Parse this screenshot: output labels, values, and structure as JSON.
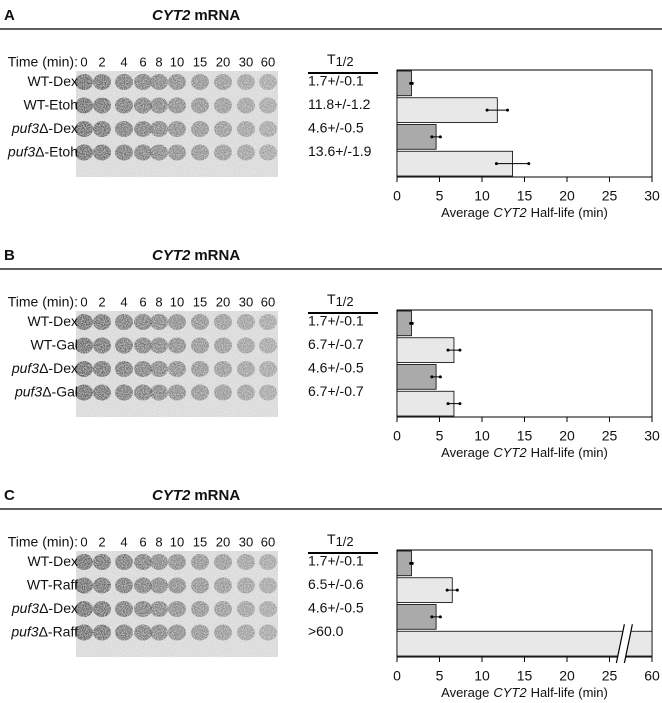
{
  "panels": [
    {
      "letter": "A",
      "title": {
        "gene": "CYT2",
        "rest": "mRNA"
      },
      "time_label": "Time (min):",
      "times": [
        0,
        2,
        4,
        6,
        8,
        10,
        15,
        20,
        30,
        60
      ],
      "half_life_header": {
        "main": "T",
        "sub": "1/2"
      },
      "rows": [
        {
          "label": "WT-Dex"
        },
        {
          "label": "WT-Etoh"
        },
        {
          "gene": "puf3",
          "label": "Δ-Dex"
        },
        {
          "gene": "puf3",
          "label": "Δ-Etoh"
        }
      ],
      "half_lives": [
        "1.7+/-0.1",
        "11.8+/-1.2",
        "4.6+/-0.5",
        "13.6+/-1.9"
      ]
    },
    {
      "letter": "B",
      "title": {
        "gene": "CYT2",
        "rest": "mRNA"
      },
      "time_label": "Time (min):",
      "times": [
        0,
        2,
        4,
        6,
        8,
        10,
        15,
        20,
        30,
        60
      ],
      "half_life_header": {
        "main": "T",
        "sub": "1/2"
      },
      "rows": [
        {
          "label": "WT-Dex"
        },
        {
          "label": "WT-Gal"
        },
        {
          "gene": "puf3",
          "label": "Δ-Dex"
        },
        {
          "gene": "puf3",
          "label": "Δ-Gal"
        }
      ],
      "half_lives": [
        "1.7+/-0.1",
        "6.7+/-0.7",
        "4.6+/-0.5",
        "6.7+/-0.7"
      ]
    },
    {
      "letter": "C",
      "title": {
        "gene": "CYT2",
        "rest": "mRNA"
      },
      "time_label": "Time (min):",
      "times": [
        0,
        2,
        4,
        6,
        8,
        10,
        15,
        20,
        30,
        60
      ],
      "half_life_header": {
        "main": "T",
        "sub": "1/2"
      },
      "rows": [
        {
          "label": "WT-Dex"
        },
        {
          "label": "WT-Raff"
        },
        {
          "gene": "puf3",
          "label": "Δ-Dex"
        },
        {
          "gene": "puf3",
          "label": "Δ-Raff"
        }
      ],
      "half_lives": [
        "1.7+/-0.1",
        "6.5+/-0.6",
        "4.6+/-0.5",
        ">60.0"
      ]
    }
  ],
  "chart_data": [
    {
      "type": "bar",
      "orientation": "horizontal",
      "values": [
        1.7,
        11.8,
        4.6,
        13.6
      ],
      "errors": [
        0.1,
        1.2,
        0.5,
        1.9
      ],
      "colors": [
        "#aaaaaa",
        "#e8e8e8",
        "#aaaaaa",
        "#e8e8e8"
      ],
      "xlim": [
        0,
        30
      ],
      "xticks": [
        0,
        5,
        10,
        15,
        20,
        25,
        30
      ],
      "x_label": {
        "prefix": "Average",
        "gene": "CYT2",
        "suffix": "Half-life (min)"
      }
    },
    {
      "type": "bar",
      "orientation": "horizontal",
      "values": [
        1.7,
        6.7,
        4.6,
        6.7
      ],
      "errors": [
        0.1,
        0.7,
        0.5,
        0.7
      ],
      "colors": [
        "#aaaaaa",
        "#e8e8e8",
        "#aaaaaa",
        "#e8e8e8"
      ],
      "xlim": [
        0,
        30
      ],
      "xticks": [
        0,
        5,
        10,
        15,
        20,
        25,
        30
      ],
      "x_label": {
        "prefix": "Average",
        "gene": "CYT2",
        "suffix": "Half-life (min)"
      }
    },
    {
      "type": "bar",
      "orientation": "horizontal",
      "values": [
        1.7,
        6.5,
        4.6,
        60
      ],
      "errors": [
        0.1,
        0.6,
        0.5,
        null
      ],
      "colors": [
        "#aaaaaa",
        "#e8e8e8",
        "#aaaaaa",
        "#e8e8e8"
      ],
      "xlim": [
        0,
        60
      ],
      "xticks": [
        0,
        5,
        10,
        15,
        20,
        25,
        60
      ],
      "axis_break": true,
      "x_label": {
        "prefix": "Average",
        "gene": "CYT2",
        "suffix": "Half-life (min)"
      }
    }
  ]
}
